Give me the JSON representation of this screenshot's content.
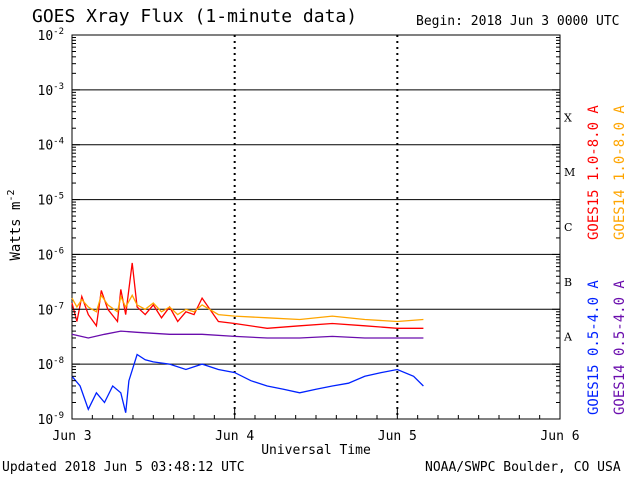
{
  "title": "GOES Xray Flux (1-minute data)",
  "begin": "Begin:  2018 Jun 3 0000 UTC",
  "updated": "Updated 2018 Jun  5 03:48:12 UTC",
  "credit": "NOAA/SWPC Boulder, CO USA",
  "chart_data": {
    "type": "line",
    "title": "GOES Xray Flux (1-minute data)",
    "xlabel": "Universal Time",
    "ylabel": "Watts m",
    "ylabel_sup": "-2",
    "yscale": "log",
    "ylim": [
      1e-09,
      0.01
    ],
    "xlim": [
      "Jun 3",
      "Jun 6"
    ],
    "x_ticks": [
      "Jun 3",
      "Jun 4",
      "Jun 5",
      "Jun 6"
    ],
    "y_ticks": [
      {
        "base": "10",
        "exp": "-9",
        "value": 1e-09
      },
      {
        "base": "10",
        "exp": "-8",
        "value": 1e-08
      },
      {
        "base": "10",
        "exp": "-7",
        "value": 1e-07
      },
      {
        "base": "10",
        "exp": "-6",
        "value": 1e-06
      },
      {
        "base": "10",
        "exp": "-5",
        "value": 1e-05
      },
      {
        "base": "10",
        "exp": "-4",
        "value": 0.0001
      },
      {
        "base": "10",
        "exp": "-3",
        "value": 0.001
      },
      {
        "base": "10",
        "exp": "-2",
        "value": 0.01
      }
    ],
    "flare_classes": [
      {
        "label": "A",
        "value": 1e-08
      },
      {
        "label": "B",
        "value": 1e-07
      },
      {
        "label": "C",
        "value": 1e-06
      },
      {
        "label": "M",
        "value": 1e-05
      },
      {
        "label": "X",
        "value": 0.0001
      }
    ],
    "grid": true,
    "legend_placement": "right",
    "series": [
      {
        "name": "GOES15 1.0-8.0 A",
        "color": "#ff0000",
        "x_days": [
          0.0,
          0.03,
          0.06,
          0.1,
          0.15,
          0.18,
          0.22,
          0.28,
          0.3,
          0.33,
          0.37,
          0.4,
          0.45,
          0.5,
          0.55,
          0.6,
          0.65,
          0.7,
          0.75,
          0.8,
          0.9,
          1.0,
          1.2,
          1.4,
          1.6,
          1.8,
          2.0,
          2.16
        ],
        "values": [
          1.3e-07,
          6e-08,
          1.7e-07,
          8e-08,
          5e-08,
          2.2e-07,
          1e-07,
          6e-08,
          2.3e-07,
          8e-08,
          7e-07,
          1.1e-07,
          8e-08,
          1.2e-07,
          7e-08,
          1.1e-07,
          6e-08,
          9e-08,
          8e-08,
          1.6e-07,
          6e-08,
          5.5e-08,
          4.5e-08,
          5e-08,
          5.5e-08,
          5e-08,
          4.5e-08,
          4.5e-08
        ]
      },
      {
        "name": "GOES14 1.0-8.0 A",
        "color": "#ffa500",
        "x_days": [
          0.0,
          0.03,
          0.06,
          0.1,
          0.15,
          0.18,
          0.22,
          0.28,
          0.3,
          0.33,
          0.37,
          0.4,
          0.45,
          0.5,
          0.55,
          0.6,
          0.65,
          0.7,
          0.75,
          0.8,
          0.9,
          1.0,
          1.2,
          1.4,
          1.6,
          1.8,
          2.0,
          2.16
        ],
        "values": [
          1.6e-07,
          1.1e-07,
          1.5e-07,
          1.1e-07,
          9e-08,
          1.8e-07,
          1.2e-07,
          9e-08,
          1.7e-07,
          1.1e-07,
          1.8e-07,
          1.2e-07,
          1e-07,
          1.3e-07,
          9e-08,
          1.1e-07,
          8e-08,
          1e-07,
          9e-08,
          1.2e-07,
          8e-08,
          7.5e-08,
          7e-08,
          6.5e-08,
          7.5e-08,
          6.5e-08,
          6e-08,
          6.5e-08
        ]
      },
      {
        "name": "GOES14 0.5-4.0 A",
        "color": "#6a0dad",
        "x_days": [
          0.0,
          0.1,
          0.2,
          0.3,
          0.4,
          0.6,
          0.8,
          1.0,
          1.2,
          1.4,
          1.6,
          1.8,
          2.0,
          2.16
        ],
        "values": [
          3.5e-08,
          3e-08,
          3.5e-08,
          4e-08,
          3.8e-08,
          3.5e-08,
          3.5e-08,
          3.2e-08,
          3e-08,
          3e-08,
          3.2e-08,
          3e-08,
          3e-08,
          3e-08
        ]
      },
      {
        "name": "GOES15 0.5-4.0 A",
        "color": "#0022ff",
        "x_days": [
          0.0,
          0.05,
          0.1,
          0.15,
          0.2,
          0.25,
          0.3,
          0.33,
          0.35,
          0.4,
          0.45,
          0.5,
          0.6,
          0.7,
          0.8,
          0.9,
          1.0,
          1.1,
          1.2,
          1.3,
          1.4,
          1.5,
          1.6,
          1.7,
          1.8,
          1.9,
          2.0,
          2.1,
          2.16
        ],
        "values": [
          6e-09,
          4e-09,
          1.5e-09,
          3e-09,
          2e-09,
          4e-09,
          3e-09,
          1.3e-09,
          5e-09,
          1.5e-08,
          1.2e-08,
          1.1e-08,
          1e-08,
          8e-09,
          1e-08,
          8e-09,
          7e-09,
          5e-09,
          4e-09,
          3.5e-09,
          3e-09,
          3.5e-09,
          4e-09,
          4.5e-09,
          6e-09,
          7e-09,
          8e-09,
          6e-09,
          4e-09
        ]
      }
    ]
  }
}
